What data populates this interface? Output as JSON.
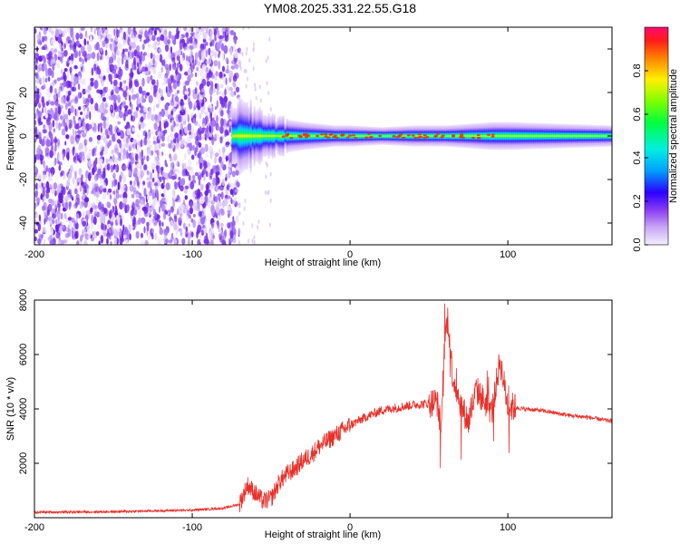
{
  "title": "YM08.2025.331.22.55.G18",
  "top_panel": {
    "xlabel": "Height of straight line (km)",
    "ylabel": "Frequency (Hz)",
    "xticks": [
      "-200",
      "-100",
      "0",
      "100"
    ],
    "yticks": [
      "40",
      "20",
      "0",
      "-20",
      "-40"
    ]
  },
  "colorbar": {
    "label": "Normalized spectral amplitude",
    "ticks": [
      "0.0",
      "0.2",
      "0.4",
      "0.6",
      "0.8"
    ]
  },
  "bottom_panel": {
    "xlabel": "Height of straight line (km)",
    "ylabel": "SNR (10 * v/v)",
    "xticks": [
      "-200",
      "-100",
      "0",
      "100"
    ],
    "yticks": [
      "2000",
      "4000",
      "6000",
      "8000"
    ]
  },
  "colors": {
    "snr_line": "#e8302a",
    "noise": "#6a1fe0",
    "band_core": "#e83020"
  },
  "chart_data": [
    {
      "type": "heatmap",
      "xlabel": "Height of straight line (km)",
      "ylabel": "Frequency (Hz)",
      "xlim": [
        -200,
        166
      ],
      "ylim": [
        -50,
        50
      ],
      "colorbar_label": "Normalized spectral amplitude",
      "colorbar_range": [
        0,
        1
      ],
      "noise_region_x": [
        -200,
        -70
      ],
      "band_center_hz": 0,
      "band_halfwidth_hz": [
        [
          -75,
          10
        ],
        [
          -60,
          8
        ],
        [
          -45,
          5
        ],
        [
          -30,
          4
        ],
        [
          -10,
          3
        ],
        [
          0,
          3
        ],
        [
          20,
          2.5
        ],
        [
          40,
          3
        ],
        [
          60,
          3
        ],
        [
          90,
          4
        ],
        [
          100,
          4
        ],
        [
          166,
          3
        ]
      ]
    },
    {
      "type": "line",
      "xlabel": "Height of straight line (km)",
      "ylabel": "SNR (10 * v/v)",
      "xlim": [
        -200,
        166
      ],
      "ylim": [
        0,
        8000
      ],
      "series": [
        {
          "x": [
            -200,
            -150,
            -100,
            -80,
            -70,
            -65,
            -60,
            -55,
            -50,
            -45,
            -40,
            -35,
            -30,
            -25,
            -20,
            -10,
            0,
            10,
            20,
            30,
            40,
            50,
            55,
            58,
            60,
            62,
            65,
            70,
            75,
            80,
            85,
            90,
            95,
            100,
            105,
            110,
            120,
            130,
            140,
            150,
            160,
            166
          ],
          "y": [
            200,
            220,
            280,
            350,
            500,
            1200,
            900,
            600,
            700,
            1300,
            1600,
            1800,
            2100,
            2300,
            2600,
            3000,
            3400,
            3700,
            3950,
            4050,
            4150,
            4200,
            4300,
            3200,
            6500,
            7400,
            5200,
            4200,
            3500,
            4700,
            4300,
            3900,
            5800,
            4100,
            4050,
            4000,
            3950,
            3850,
            3750,
            3700,
            3600,
            3550
          ]
        }
      ]
    }
  ]
}
